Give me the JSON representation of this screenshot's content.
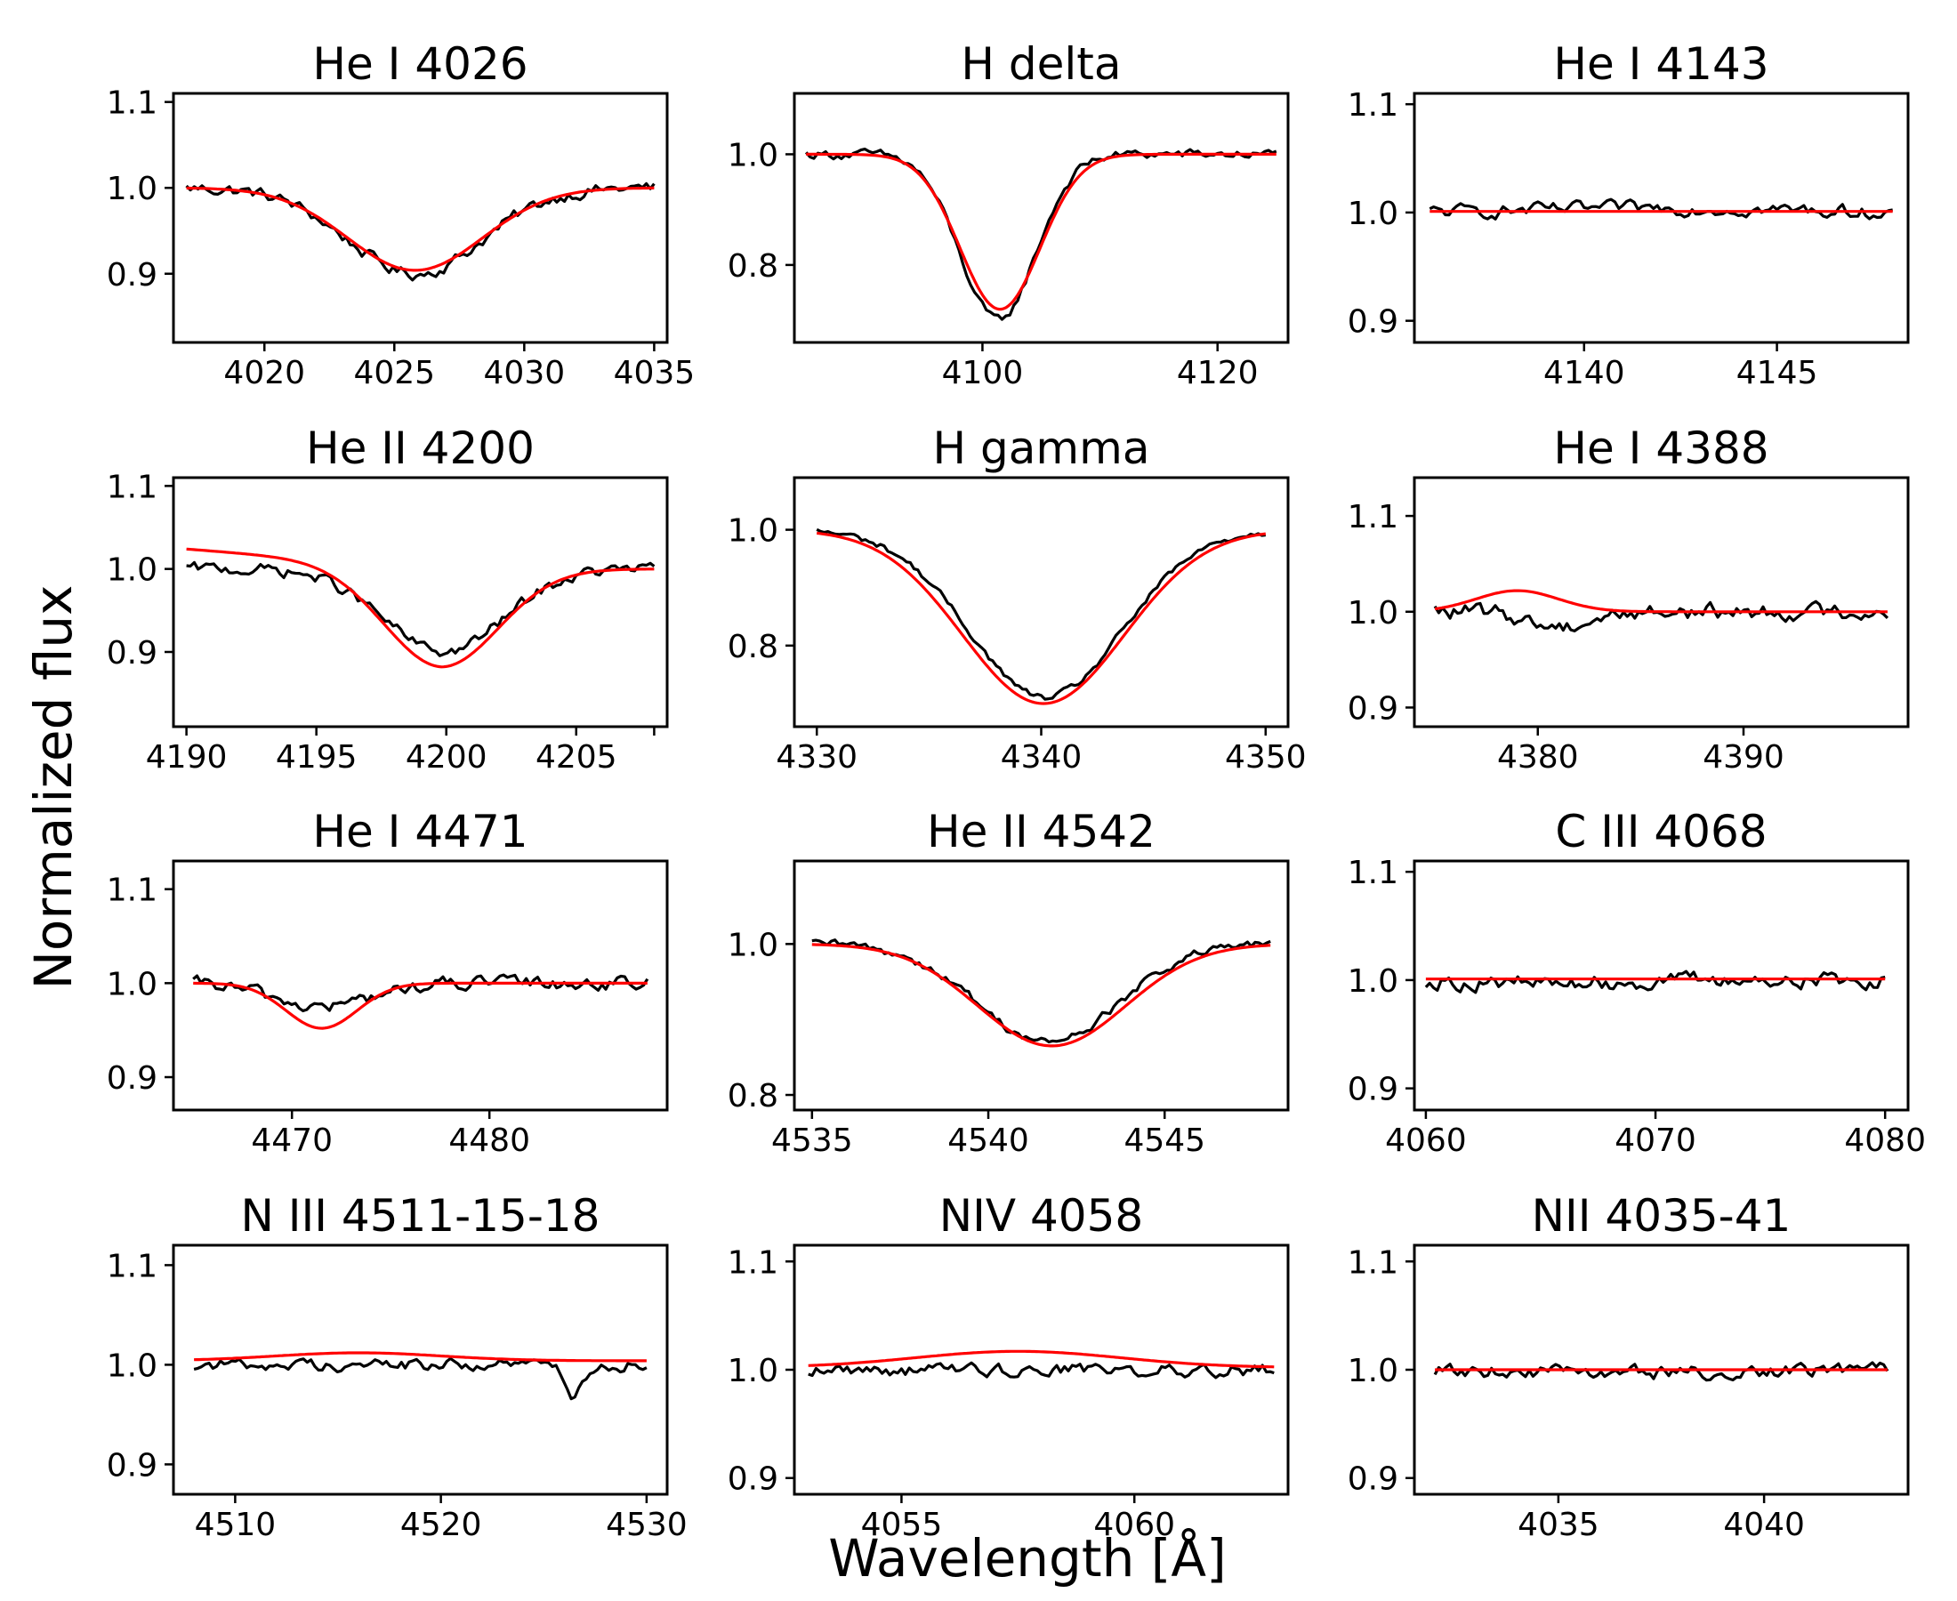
{
  "figure": {
    "ylabel": "Normalized flux",
    "xlabel": "Wavelength [Å]",
    "colors": {
      "observed": "#000000",
      "model": "#ff0000"
    }
  },
  "chart_data": [
    {
      "type": "line",
      "title": "He I 4026",
      "xlim": [
        4016.5,
        4035.5
      ],
      "ylim": [
        0.82,
        1.11
      ],
      "xticks": [
        4020,
        4025,
        4030,
        4035
      ],
      "yticks": [
        0.9,
        1.0,
        1.1
      ],
      "ytick_labels": [
        "0.9",
        "1.0",
        "1.1"
      ],
      "x_range": [
        4017,
        4035
      ],
      "model": {
        "kind": "gauss",
        "center": 4025.8,
        "depth": 0.096,
        "sigma": 2.6
      },
      "observed": {
        "center": 4025.8,
        "depth": 0.1,
        "sigma": 2.6,
        "noise": 0.006
      }
    },
    {
      "type": "line",
      "title": "H delta",
      "xlim": [
        4084,
        4126
      ],
      "ylim": [
        0.66,
        1.11
      ],
      "xticks": [
        4100,
        4120
      ],
      "yticks": [
        0.8,
        1.0
      ],
      "ytick_labels": [
        "0.8",
        "1.0"
      ],
      "x_range": [
        4085,
        4125
      ],
      "model": {
        "kind": "gauss",
        "center": 4101.5,
        "depth": 0.28,
        "sigma": 3.4
      },
      "observed": {
        "center": 4101.3,
        "depth": 0.3,
        "sigma": 3.2,
        "noise": 0.007
      }
    },
    {
      "type": "line",
      "title": "He I 4143",
      "xlim": [
        4135.6,
        4148.4
      ],
      "ylim": [
        0.88,
        1.11
      ],
      "xticks": [
        4140,
        4145
      ],
      "yticks": [
        0.9,
        1.0,
        1.1
      ],
      "ytick_labels": [
        "0.9",
        "1.0",
        "1.1"
      ],
      "x_range": [
        4136,
        4148
      ],
      "model": {
        "kind": "flat",
        "level": 1.001
      },
      "observed": {
        "center": 4142,
        "depth": -0.004,
        "sigma": 3,
        "noise": 0.005
      }
    },
    {
      "type": "line",
      "title": "He II 4200",
      "xlim": [
        4189.5,
        4208.5
      ],
      "ylim": [
        0.81,
        1.11
      ],
      "xticks": [
        4190,
        4195,
        4200,
        4205,
        4208
      ],
      "yticks": [
        0.9,
        1.0,
        1.1
      ],
      "xtick_labels": [
        "4190",
        "4195",
        "4200",
        "4205",
        ""
      ],
      "ytick_labels": [
        "0.9",
        "1.0",
        "1.1"
      ],
      "x_range": [
        4190,
        4208
      ],
      "model": {
        "kind": "gauss",
        "center": 4199.8,
        "depth": 0.118,
        "sigma": 2.2,
        "wing": 0.03
      },
      "observed": {
        "center": 4199.9,
        "depth": 0.1,
        "sigma": 2.3,
        "noise": 0.006
      }
    },
    {
      "type": "line",
      "title": "H gamma",
      "xlim": [
        4329,
        4351
      ],
      "ylim": [
        0.66,
        1.09
      ],
      "xticks": [
        4330,
        4340,
        4350
      ],
      "yticks": [
        0.8,
        1.0
      ],
      "ytick_labels": [
        "0.8",
        "1.0"
      ],
      "x_range": [
        4330,
        4350
      ],
      "model": {
        "kind": "gauss",
        "center": 4340.1,
        "depth": 0.3,
        "sigma": 3.6
      },
      "observed": {
        "center": 4340.2,
        "depth": 0.29,
        "sigma": 3.4,
        "noise": 0.005
      }
    },
    {
      "type": "line",
      "title": "He I 4388",
      "xlim": [
        4374,
        4398
      ],
      "ylim": [
        0.88,
        1.14
      ],
      "xticks": [
        4380,
        4390
      ],
      "yticks": [
        0.9,
        1.0,
        1.1
      ],
      "ytick_labels": [
        "0.9",
        "1.0",
        "1.1"
      ],
      "x_range": [
        4375,
        4397
      ],
      "model": {
        "kind": "bump",
        "center": 4379,
        "height": 0.022,
        "sigma": 2.0,
        "level": 1.0
      },
      "observed": {
        "center": 4381,
        "depth": 0.015,
        "sigma": 1.5,
        "noise": 0.007
      }
    },
    {
      "type": "line",
      "title": "He I 4471",
      "xlim": [
        4464,
        4489
      ],
      "ylim": [
        0.865,
        1.13
      ],
      "xticks": [
        4470,
        4480
      ],
      "yticks": [
        0.9,
        1.0,
        1.1
      ],
      "ytick_labels": [
        "0.9",
        "1.0",
        "1.1"
      ],
      "x_range": [
        4465,
        4488
      ],
      "model": {
        "kind": "gauss",
        "center": 4471.5,
        "depth": 0.048,
        "sigma": 1.8
      },
      "observed": {
        "center": 4471.5,
        "depth": 0.025,
        "sigma": 2.5,
        "noise": 0.006
      }
    },
    {
      "type": "line",
      "title": "He II 4542",
      "xlim": [
        4534.5,
        4548.5
      ],
      "ylim": [
        0.78,
        1.11
      ],
      "xticks": [
        4535,
        4540,
        4545
      ],
      "yticks": [
        0.8,
        1.0
      ],
      "ytick_labels": [
        "0.8",
        "1.0"
      ],
      "x_range": [
        4535,
        4548
      ],
      "model": {
        "kind": "gauss",
        "center": 4541.8,
        "depth": 0.135,
        "sigma": 2.1
      },
      "observed": {
        "center": 4541.7,
        "depth": 0.13,
        "sigma": 2.0,
        "noise": 0.005
      }
    },
    {
      "type": "line",
      "title": "C III 4068",
      "xlim": [
        4059.5,
        4081
      ],
      "ylim": [
        0.88,
        1.11
      ],
      "xticks": [
        4060,
        4070,
        4080
      ],
      "yticks": [
        0.9,
        1.0,
        1.1
      ],
      "ytick_labels": [
        "0.9",
        "1.0",
        "1.1"
      ],
      "x_range": [
        4060,
        4080
      ],
      "model": {
        "kind": "flat",
        "level": 1.001
      },
      "observed": {
        "center": 4065,
        "depth": 0.003,
        "sigma": 3,
        "noise": 0.006
      }
    },
    {
      "type": "line",
      "title": "N III 4511-15-18",
      "xlim": [
        4507,
        4531
      ],
      "ylim": [
        0.87,
        1.12
      ],
      "xticks": [
        4510,
        4520,
        4530
      ],
      "yticks": [
        0.9,
        1.0,
        1.1
      ],
      "ytick_labels": [
        "0.9",
        "1.0",
        "1.1"
      ],
      "x_range": [
        4508,
        4530
      ],
      "model": {
        "kind": "bump",
        "center": 4516,
        "height": 0.008,
        "sigma": 4,
        "level": 1.004
      },
      "observed": {
        "center": 4526.5,
        "depth": 0.03,
        "sigma": 0.4,
        "noise": 0.005
      }
    },
    {
      "type": "line",
      "title": "NIV 4058",
      "xlim": [
        4052.7,
        4063.3
      ],
      "ylim": [
        0.885,
        1.115
      ],
      "xticks": [
        4055,
        4060
      ],
      "yticks": [
        0.9,
        1.0,
        1.1
      ],
      "ytick_labels": [
        "0.9",
        "1.0",
        "1.1"
      ],
      "x_range": [
        4053,
        4063
      ],
      "model": {
        "kind": "bump",
        "center": 4057.5,
        "height": 0.015,
        "sigma": 2.2,
        "level": 1.002
      },
      "observed": {
        "center": 4058,
        "depth": 0.0,
        "sigma": 2,
        "noise": 0.005
      }
    },
    {
      "type": "line",
      "title": "NII 4035-41",
      "xlim": [
        4031.5,
        4043.5
      ],
      "ylim": [
        0.885,
        1.115
      ],
      "xticks": [
        4035,
        4040
      ],
      "yticks": [
        0.9,
        1.0,
        1.1
      ],
      "ytick_labels": [
        "0.9",
        "1.0",
        "1.1"
      ],
      "x_range": [
        4032,
        4043
      ],
      "model": {
        "kind": "flat",
        "level": 1.0
      },
      "observed": {
        "center": 4037,
        "depth": 0.003,
        "sigma": 3,
        "noise": 0.005
      }
    }
  ]
}
